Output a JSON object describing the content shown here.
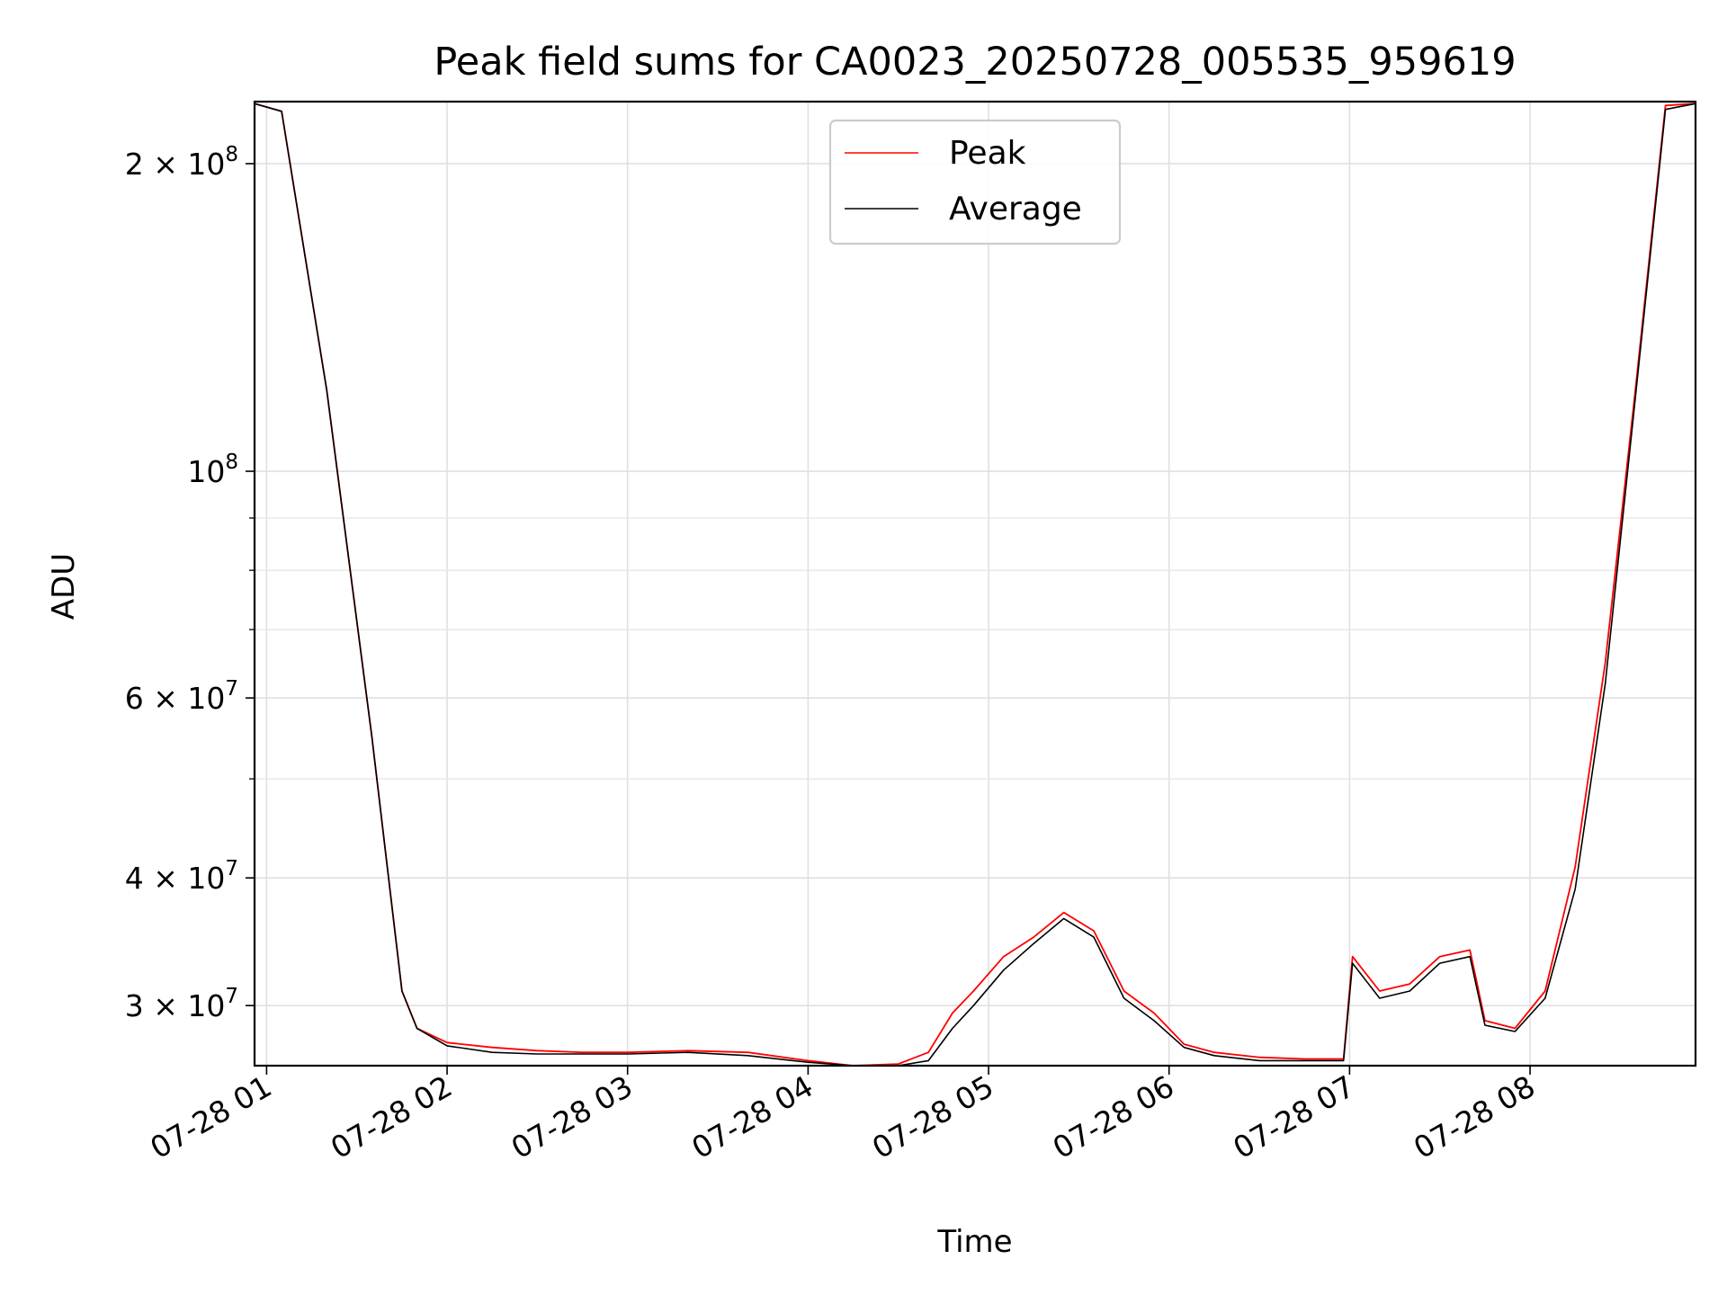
{
  "chart_data": {
    "type": "line",
    "title": "Peak field sums for CA0023_20250728_005535_959619",
    "xlabel": "Time",
    "ylabel": "ADU",
    "yscale": "log",
    "xlim": [
      "2025-07-28T00:56:00",
      "2025-07-28T08:55:00"
    ],
    "ylim": [
      26200000,
      230000000
    ],
    "grid": true,
    "legend_position": "upper center",
    "x_ticks": [
      "07-28 01",
      "07-28 02",
      "07-28 03",
      "07-28 04",
      "07-28 05",
      "07-28 06",
      "07-28 07",
      "07-28 08"
    ],
    "y_ticks": [
      {
        "value": 30000000,
        "mantissa": "3",
        "exp": "7"
      },
      {
        "value": 40000000,
        "mantissa": "4",
        "exp": "7"
      },
      {
        "value": 60000000,
        "mantissa": "6",
        "exp": "7"
      },
      {
        "value": 100000000,
        "mantissa": "",
        "exp": "8"
      },
      {
        "value": 200000000,
        "mantissa": "2",
        "exp": "8"
      }
    ],
    "series": [
      {
        "name": "Peak",
        "color": "#ff0000",
        "x": [
          "00:56",
          "01:05",
          "01:20",
          "01:35",
          "01:45",
          "01:50",
          "02:00",
          "02:15",
          "02:30",
          "02:45",
          "03:00",
          "03:20",
          "03:40",
          "04:00",
          "04:15",
          "04:30",
          "04:40",
          "04:48",
          "04:55",
          "05:05",
          "05:15",
          "05:25",
          "05:35",
          "05:45",
          "05:55",
          "06:05",
          "06:15",
          "06:30",
          "06:45",
          "06:58",
          "07:01",
          "07:10",
          "07:20",
          "07:30",
          "07:40",
          "07:45",
          "07:55",
          "08:05",
          "08:15",
          "08:25",
          "08:35",
          "08:45",
          "08:55"
        ],
        "y": [
          229000000,
          225000000,
          120000000,
          55000000,
          31000000,
          28500000,
          27600000,
          27300000,
          27100000,
          27000000,
          27000000,
          27100000,
          27000000,
          26500000,
          26200000,
          26300000,
          27000000,
          29500000,
          31000000,
          33500000,
          35000000,
          37000000,
          35500000,
          31000000,
          29500000,
          27500000,
          27000000,
          26700000,
          26600000,
          26600000,
          33500000,
          31000000,
          31500000,
          33500000,
          34000000,
          29000000,
          28500000,
          31000000,
          41000000,
          65000000,
          120000000,
          228000000,
          229000000
        ]
      },
      {
        "name": "Average",
        "color": "#000000",
        "x": [
          "00:56",
          "01:05",
          "01:20",
          "01:35",
          "01:45",
          "01:50",
          "02:00",
          "02:15",
          "02:30",
          "02:45",
          "03:00",
          "03:20",
          "03:40",
          "04:00",
          "04:15",
          "04:30",
          "04:40",
          "04:48",
          "04:55",
          "05:05",
          "05:15",
          "05:25",
          "05:35",
          "05:45",
          "05:55",
          "06:05",
          "06:15",
          "06:30",
          "06:45",
          "06:58",
          "07:01",
          "07:10",
          "07:20",
          "07:30",
          "07:40",
          "07:45",
          "07:55",
          "08:05",
          "08:15",
          "08:25",
          "08:35",
          "08:45",
          "08:55"
        ],
        "y": [
          229000000,
          225000000,
          120000000,
          55000000,
          31000000,
          28500000,
          27400000,
          27000000,
          26900000,
          26900000,
          26900000,
          27000000,
          26800000,
          26400000,
          26200000,
          26200000,
          26500000,
          28500000,
          30000000,
          32500000,
          34500000,
          36500000,
          35000000,
          30500000,
          29000000,
          27300000,
          26800000,
          26500000,
          26500000,
          26500000,
          33000000,
          30500000,
          31000000,
          33000000,
          33500000,
          28700000,
          28300000,
          30500000,
          39000000,
          62000000,
          118000000,
          226000000,
          229000000
        ]
      }
    ]
  }
}
